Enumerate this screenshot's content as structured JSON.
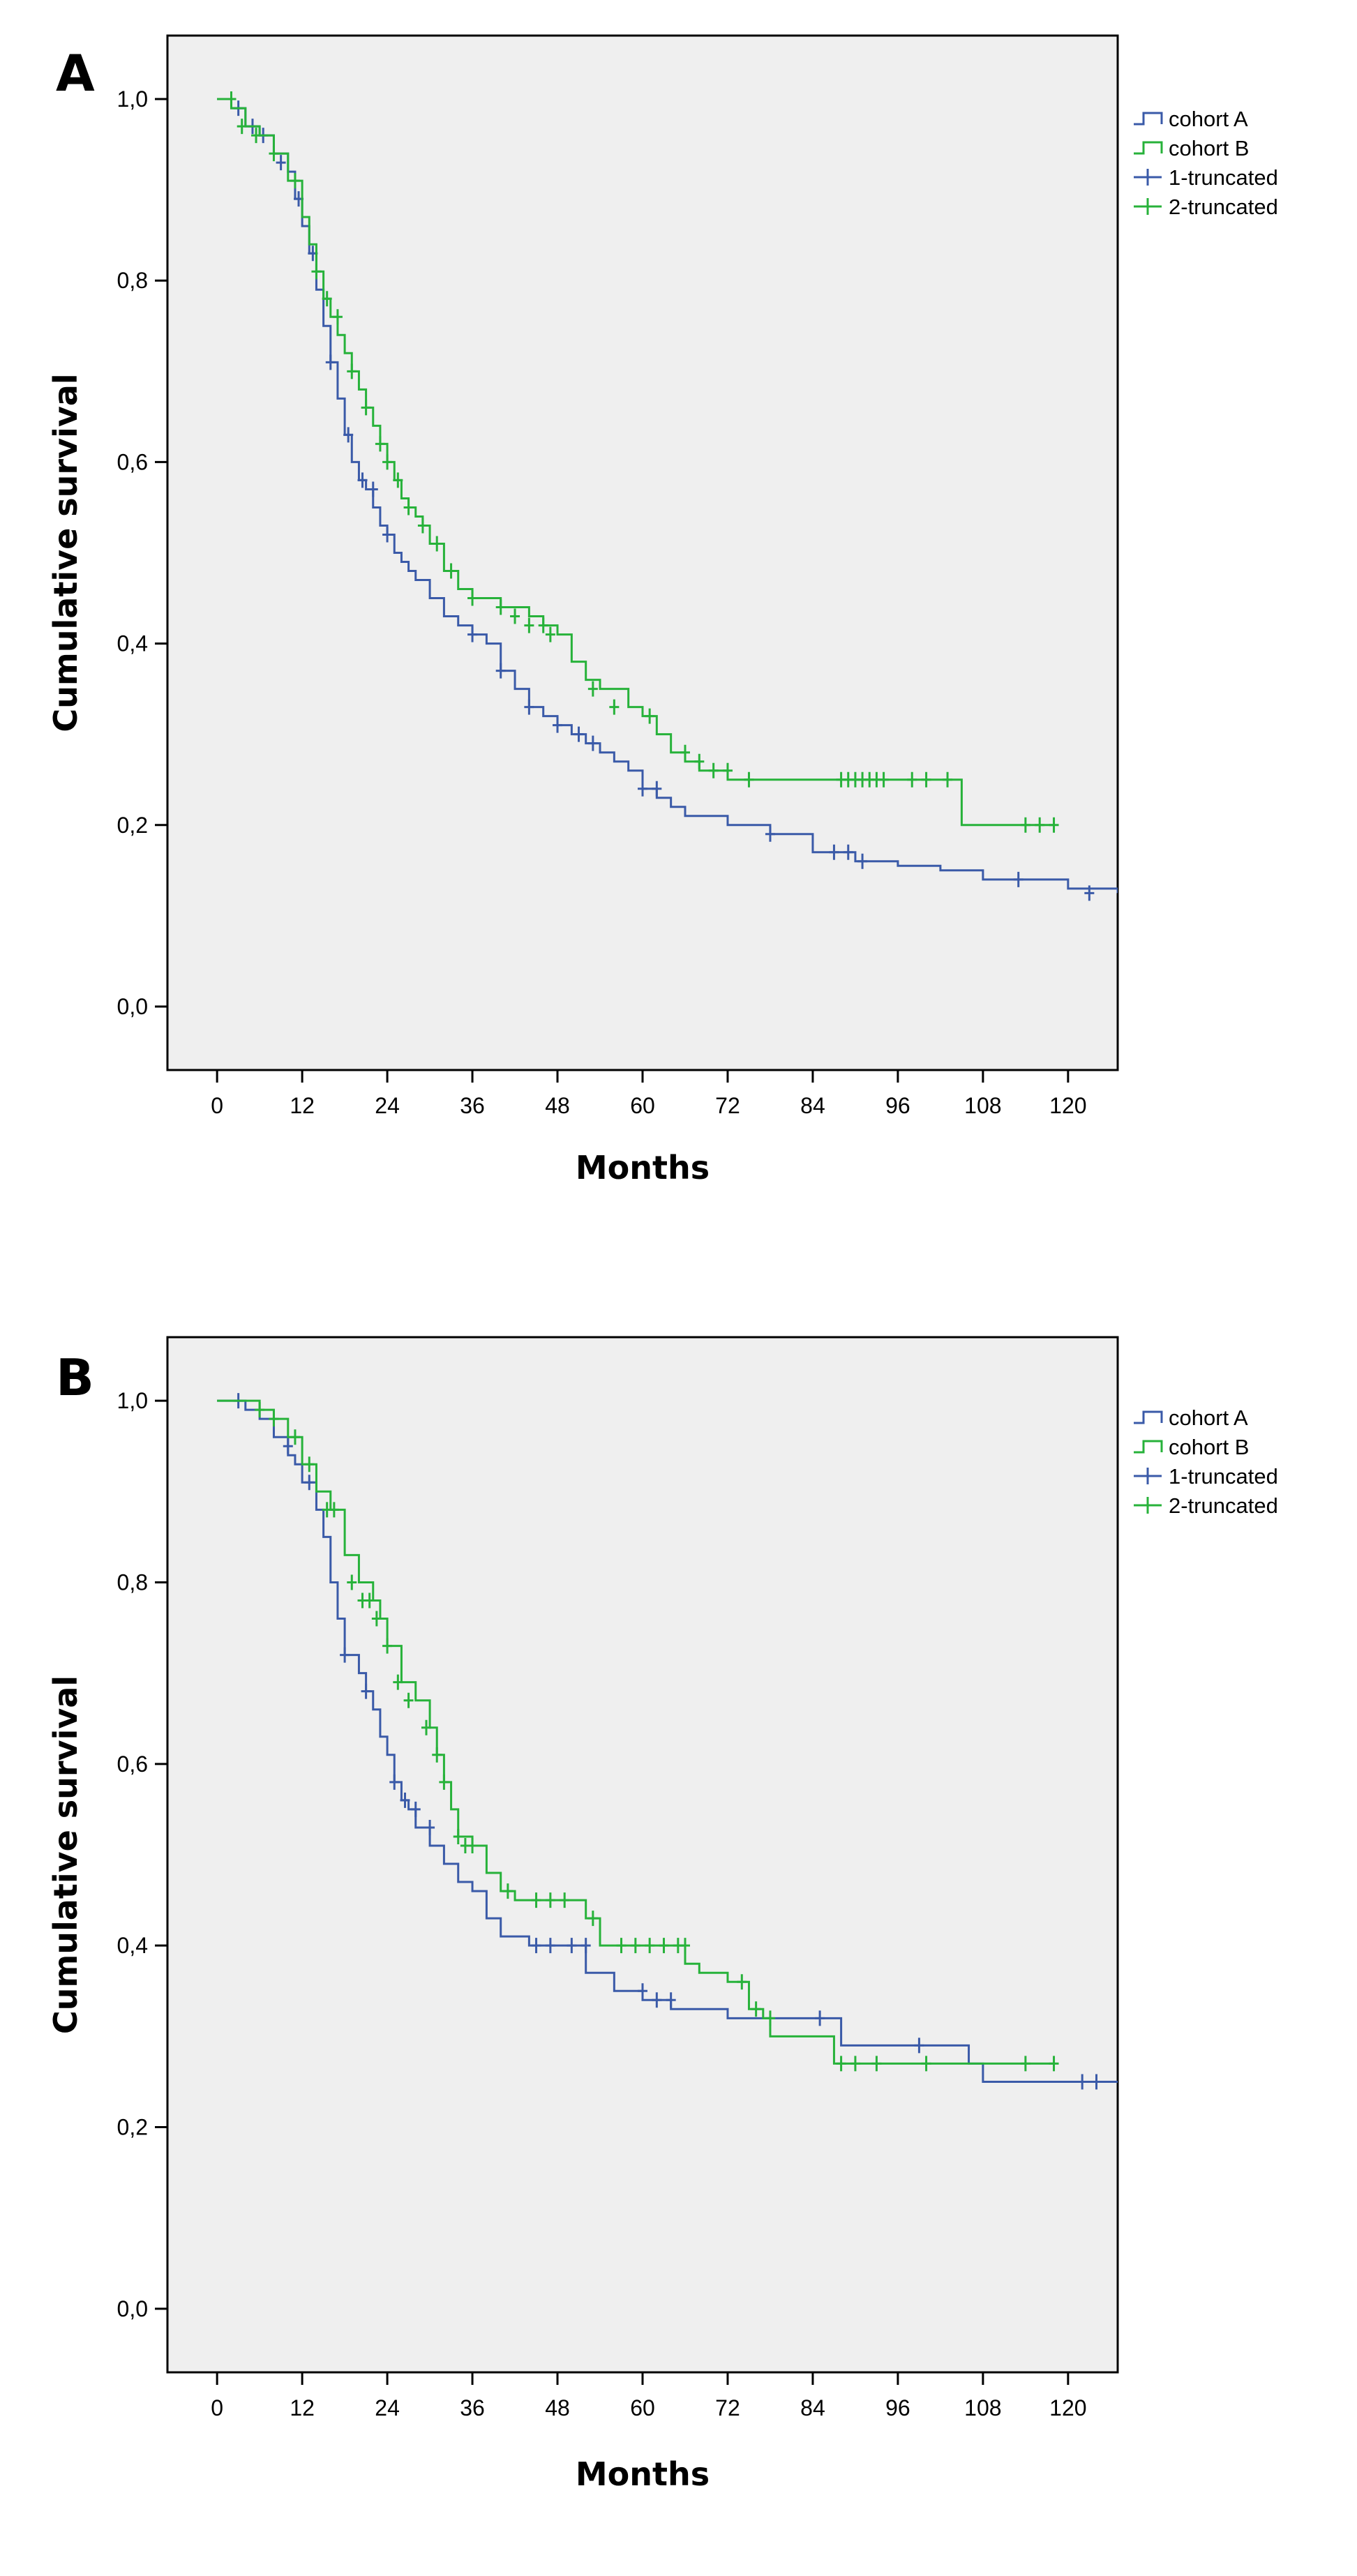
{
  "chart_data": [
    {
      "type": "line",
      "panel_label": "A",
      "xlabel": "Months",
      "ylabel": "Cumulative survival",
      "xlim": [
        -7,
        127
      ],
      "ylim": [
        -0.07,
        1.07
      ],
      "xticks": [
        0,
        12,
        24,
        36,
        48,
        60,
        72,
        84,
        96,
        108,
        120
      ],
      "yticks": [
        0.0,
        0.2,
        0.4,
        0.6,
        0.8,
        1.0
      ],
      "ytick_labels": [
        "0,0",
        "0,2",
        "0,4",
        "0,6",
        "0,8",
        "1,0"
      ],
      "grid": false,
      "legend_position": "right-top",
      "legend": [
        "cohort A",
        "cohort B",
        "1-truncated",
        "2-truncated"
      ],
      "colors": {
        "cohort A": "#3a5aa8",
        "cohort B": "#27b23a"
      },
      "series": [
        {
          "name": "cohort A",
          "step_x": [
            0,
            2,
            4,
            6,
            8,
            10,
            11,
            12,
            13,
            14,
            15,
            16,
            17,
            18,
            19,
            20,
            21,
            22,
            23,
            24,
            25,
            26,
            27,
            28,
            30,
            32,
            34,
            36,
            38,
            40,
            42,
            44,
            46,
            48,
            50,
            52,
            54,
            56,
            58,
            60,
            62,
            64,
            66,
            72,
            78,
            84,
            90,
            96,
            102,
            108,
            114,
            120,
            127
          ],
          "step_y": [
            1.0,
            0.99,
            0.97,
            0.96,
            0.94,
            0.92,
            0.89,
            0.86,
            0.83,
            0.79,
            0.75,
            0.71,
            0.67,
            0.63,
            0.6,
            0.58,
            0.57,
            0.55,
            0.53,
            0.52,
            0.5,
            0.49,
            0.48,
            0.47,
            0.45,
            0.43,
            0.42,
            0.41,
            0.4,
            0.37,
            0.35,
            0.33,
            0.32,
            0.31,
            0.3,
            0.29,
            0.28,
            0.27,
            0.26,
            0.24,
            0.23,
            0.22,
            0.21,
            0.2,
            0.19,
            0.17,
            0.16,
            0.155,
            0.15,
            0.14,
            0.14,
            0.13,
            0.125
          ],
          "censor_x": [
            3,
            5,
            6.5,
            9,
            11.5,
            13.5,
            16,
            18.5,
            20.5,
            22,
            24,
            36,
            40,
            44,
            48,
            51,
            53,
            60,
            62,
            78,
            87,
            89,
            91,
            113,
            123
          ],
          "censor_y": [
            0.99,
            0.97,
            0.96,
            0.93,
            0.89,
            0.83,
            0.71,
            0.63,
            0.58,
            0.57,
            0.52,
            0.41,
            0.37,
            0.33,
            0.31,
            0.3,
            0.29,
            0.24,
            0.24,
            0.19,
            0.17,
            0.17,
            0.16,
            0.14,
            0.125
          ]
        },
        {
          "name": "cohort B",
          "step_x": [
            0,
            2,
            4,
            6,
            8,
            10,
            12,
            13,
            14,
            15,
            16,
            17,
            18,
            19,
            20,
            21,
            22,
            23,
            24,
            25,
            26,
            27,
            28,
            29,
            30,
            32,
            34,
            36,
            40,
            44,
            46,
            48,
            50,
            52,
            54,
            58,
            60,
            62,
            64,
            66,
            68,
            70,
            72,
            74,
            105,
            127
          ],
          "step_y": [
            1.0,
            0.99,
            0.97,
            0.96,
            0.94,
            0.91,
            0.87,
            0.84,
            0.81,
            0.78,
            0.76,
            0.74,
            0.72,
            0.7,
            0.68,
            0.66,
            0.64,
            0.62,
            0.6,
            0.58,
            0.56,
            0.55,
            0.54,
            0.53,
            0.51,
            0.48,
            0.46,
            0.45,
            0.44,
            0.43,
            0.42,
            0.41,
            0.38,
            0.36,
            0.35,
            0.33,
            0.32,
            0.3,
            0.28,
            0.27,
            0.26,
            0.26,
            0.25,
            0.25,
            0.2,
            0.2
          ],
          "end_x": 118,
          "censor_x": [
            2,
            3.5,
            5.5,
            8,
            11,
            14,
            15.5,
            17,
            19,
            21,
            23,
            24,
            25.5,
            27,
            29,
            31,
            33,
            36,
            40,
            42,
            44,
            46,
            47,
            53,
            56,
            61,
            66,
            68,
            70,
            72,
            75,
            88,
            89,
            90,
            91,
            92,
            93,
            94,
            98,
            100,
            103,
            114,
            116,
            118
          ],
          "censor_y": [
            1.0,
            0.97,
            0.96,
            0.94,
            0.91,
            0.81,
            0.78,
            0.76,
            0.7,
            0.66,
            0.62,
            0.6,
            0.58,
            0.55,
            0.53,
            0.51,
            0.48,
            0.45,
            0.44,
            0.43,
            0.42,
            0.42,
            0.41,
            0.35,
            0.33,
            0.32,
            0.28,
            0.27,
            0.26,
            0.26,
            0.25,
            0.25,
            0.25,
            0.25,
            0.25,
            0.25,
            0.25,
            0.25,
            0.25,
            0.25,
            0.25,
            0.2,
            0.2,
            0.2
          ]
        }
      ]
    },
    {
      "type": "line",
      "panel_label": "B",
      "xlabel": "Months",
      "ylabel": "Cumulative survival",
      "xlim": [
        -7,
        127
      ],
      "ylim": [
        -0.07,
        1.07
      ],
      "xticks": [
        0,
        12,
        24,
        36,
        48,
        60,
        72,
        84,
        96,
        108,
        120
      ],
      "yticks": [
        0.0,
        0.2,
        0.4,
        0.6,
        0.8,
        1.0
      ],
      "ytick_labels": [
        "0,0",
        "0,2",
        "0,4",
        "0,6",
        "0,8",
        "1,0"
      ],
      "grid": false,
      "legend_position": "right-top",
      "legend": [
        "cohort A",
        "cohort B",
        "1-truncated",
        "2-truncated"
      ],
      "colors": {
        "cohort A": "#3a5aa8",
        "cohort B": "#27b23a"
      },
      "series": [
        {
          "name": "cohort A",
          "step_x": [
            0,
            4,
            6,
            8,
            10,
            11,
            12,
            14,
            15,
            16,
            17,
            18,
            20,
            21,
            22,
            23,
            24,
            25,
            26,
            27,
            28,
            30,
            32,
            34,
            36,
            38,
            40,
            44,
            48,
            52,
            56,
            60,
            64,
            72,
            84,
            88,
            96,
            106,
            108,
            127
          ],
          "step_y": [
            1.0,
            0.99,
            0.98,
            0.96,
            0.94,
            0.93,
            0.91,
            0.88,
            0.85,
            0.8,
            0.76,
            0.72,
            0.7,
            0.68,
            0.66,
            0.63,
            0.61,
            0.58,
            0.56,
            0.55,
            0.53,
            0.51,
            0.49,
            0.47,
            0.46,
            0.43,
            0.41,
            0.4,
            0.4,
            0.37,
            0.35,
            0.34,
            0.33,
            0.32,
            0.32,
            0.29,
            0.29,
            0.27,
            0.25,
            0.25
          ],
          "censor_x": [
            3,
            10,
            13,
            18,
            21,
            25,
            26.5,
            28,
            30,
            45,
            47,
            50,
            52,
            60,
            62,
            64,
            85,
            99,
            122,
            124
          ],
          "censor_y": [
            1.0,
            0.95,
            0.91,
            0.72,
            0.68,
            0.58,
            0.56,
            0.55,
            0.53,
            0.4,
            0.4,
            0.4,
            0.4,
            0.35,
            0.34,
            0.34,
            0.32,
            0.29,
            0.25,
            0.25
          ]
        },
        {
          "name": "cohort B",
          "step_x": [
            0,
            6,
            8,
            10,
            12,
            14,
            16,
            18,
            20,
            22,
            23,
            24,
            26,
            28,
            30,
            31,
            32,
            33,
            34,
            36,
            38,
            40,
            42,
            44,
            46,
            52,
            54,
            58,
            66,
            68,
            72,
            75,
            76,
            77,
            78,
            87,
            127
          ],
          "step_y": [
            1.0,
            0.99,
            0.98,
            0.96,
            0.93,
            0.9,
            0.88,
            0.83,
            0.8,
            0.78,
            0.76,
            0.73,
            0.69,
            0.67,
            0.64,
            0.61,
            0.58,
            0.55,
            0.52,
            0.51,
            0.48,
            0.46,
            0.45,
            0.45,
            0.45,
            0.43,
            0.4,
            0.4,
            0.38,
            0.37,
            0.36,
            0.33,
            0.33,
            0.32,
            0.3,
            0.27,
            0.27
          ],
          "end_x": 118,
          "censor_x": [
            6,
            8,
            11,
            13,
            15.5,
            16.5,
            19,
            20.5,
            21.5,
            22.5,
            24,
            25.5,
            27,
            29.5,
            31,
            32,
            34,
            35,
            36,
            41,
            45,
            47,
            49,
            53,
            57,
            59,
            61,
            63,
            65,
            66,
            74,
            76,
            78,
            88,
            90,
            93,
            100,
            114,
            118
          ],
          "censor_y": [
            0.99,
            0.98,
            0.96,
            0.93,
            0.88,
            0.88,
            0.8,
            0.78,
            0.78,
            0.76,
            0.73,
            0.69,
            0.67,
            0.64,
            0.61,
            0.58,
            0.52,
            0.51,
            0.51,
            0.46,
            0.45,
            0.45,
            0.45,
            0.43,
            0.4,
            0.4,
            0.4,
            0.4,
            0.4,
            0.4,
            0.36,
            0.33,
            0.32,
            0.27,
            0.27,
            0.27,
            0.27,
            0.27,
            0.27
          ]
        }
      ]
    }
  ]
}
